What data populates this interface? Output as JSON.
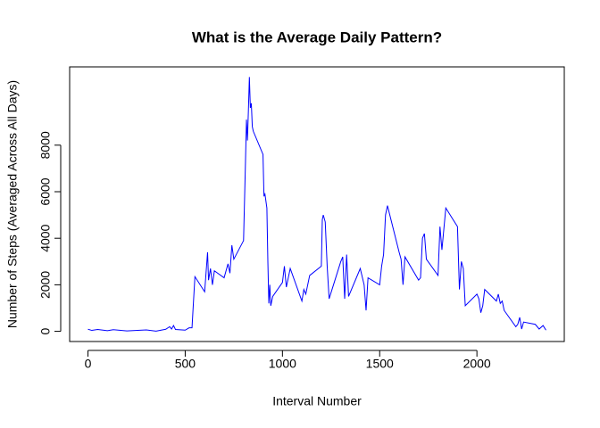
{
  "chart_data": {
    "type": "line",
    "title": "What is the Average Daily Pattern?",
    "x_label": "Interval Number",
    "y_label": "Number of Steps (Averaged Across All Days)",
    "x": [
      0,
      20,
      50,
      100,
      130,
      200,
      300,
      350,
      400,
      420,
      430,
      440,
      450,
      500,
      520,
      535,
      540,
      550,
      600,
      615,
      620,
      630,
      640,
      650,
      700,
      720,
      730,
      740,
      750,
      800,
      810,
      815,
      820,
      825,
      830,
      835,
      840,
      845,
      850,
      900,
      905,
      910,
      920,
      925,
      930,
      935,
      940,
      950,
      1000,
      1010,
      1020,
      1040,
      1100,
      1110,
      1120,
      1140,
      1200,
      1205,
      1210,
      1220,
      1230,
      1240,
      1300,
      1310,
      1320,
      1330,
      1340,
      1400,
      1420,
      1430,
      1440,
      1500,
      1510,
      1520,
      1530,
      1540,
      1600,
      1610,
      1620,
      1630,
      1700,
      1710,
      1720,
      1730,
      1740,
      1800,
      1810,
      1820,
      1830,
      1840,
      1900,
      1910,
      1920,
      1930,
      1940,
      2000,
      2010,
      2020,
      2030,
      2040,
      2100,
      2110,
      2120,
      2130,
      2140,
      2200,
      2210,
      2220,
      2230,
      2240,
      2300,
      2320,
      2340,
      2355
    ],
    "series": [
      {
        "color": "#0000ff",
        "values": [
          90,
          40,
          80,
          30,
          70,
          20,
          60,
          10,
          90,
          200,
          100,
          250,
          80,
          50,
          150,
          150,
          900,
          2350,
          1700,
          3400,
          2200,
          2700,
          2000,
          2600,
          2300,
          2900,
          2500,
          3700,
          3100,
          3900,
          7300,
          9100,
          8200,
          9500,
          10927,
          9600,
          9800,
          8800,
          8600,
          7600,
          5800,
          5900,
          5300,
          3000,
          1200,
          2000,
          1100,
          1500,
          2100,
          2800,
          1900,
          2700,
          1300,
          1800,
          1600,
          2400,
          2800,
          4800,
          5000,
          4700,
          2800,
          1400,
          3000,
          3200,
          1400,
          3300,
          1500,
          2700,
          2000,
          900,
          2300,
          2000,
          2800,
          3300,
          5000,
          5400,
          3400,
          3100,
          2000,
          3200,
          2200,
          2300,
          4000,
          4200,
          3100,
          2400,
          4500,
          3500,
          4400,
          5300,
          4500,
          1800,
          3000,
          2700,
          1100,
          1600,
          1400,
          800,
          1100,
          1800,
          1300,
          1600,
          1200,
          1300,
          900,
          200,
          300,
          600,
          100,
          400,
          300,
          100,
          250,
          50
        ]
      }
    ],
    "xlim": [
      -94.2,
      2449.2
    ],
    "ylim": [
      -437,
      11364
    ],
    "xticks": [
      0,
      500,
      1000,
      1500,
      2000
    ],
    "yticks": [
      0,
      2000,
      4000,
      6000,
      8000
    ]
  }
}
